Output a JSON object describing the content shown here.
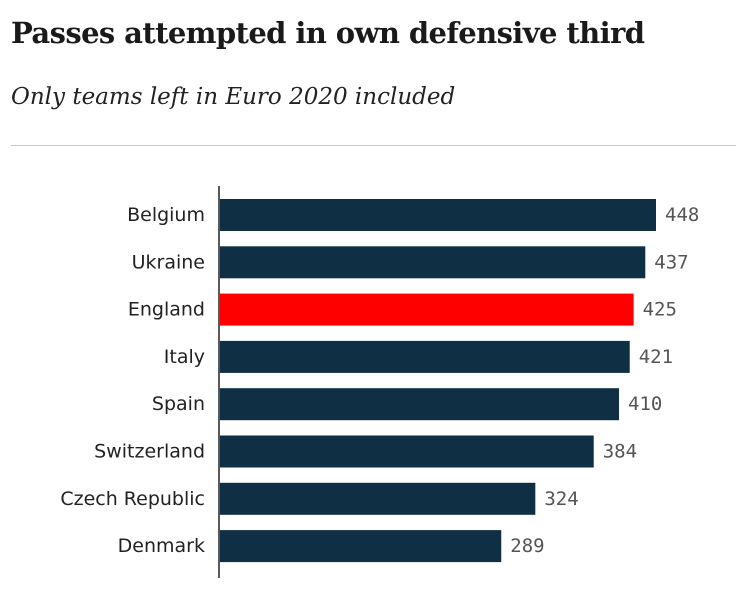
{
  "chart_data": {
    "type": "bar",
    "orientation": "horizontal",
    "title": "Passes attempted in own defensive third",
    "subtitle": "Only teams left in Euro 2020 included",
    "categories": [
      "Belgium",
      "Ukraine",
      "England",
      "Italy",
      "Spain",
      "Switzerland",
      "Czech Republic",
      "Denmark"
    ],
    "values": [
      448,
      437,
      425,
      421,
      410,
      384,
      324,
      289
    ],
    "highlight": "England",
    "colors": {
      "bar": "#0e2f44",
      "highlight": "#ff0000",
      "axis": "#222222"
    },
    "xlim": [
      0,
      448
    ],
    "xlabel": "",
    "ylabel": ""
  }
}
